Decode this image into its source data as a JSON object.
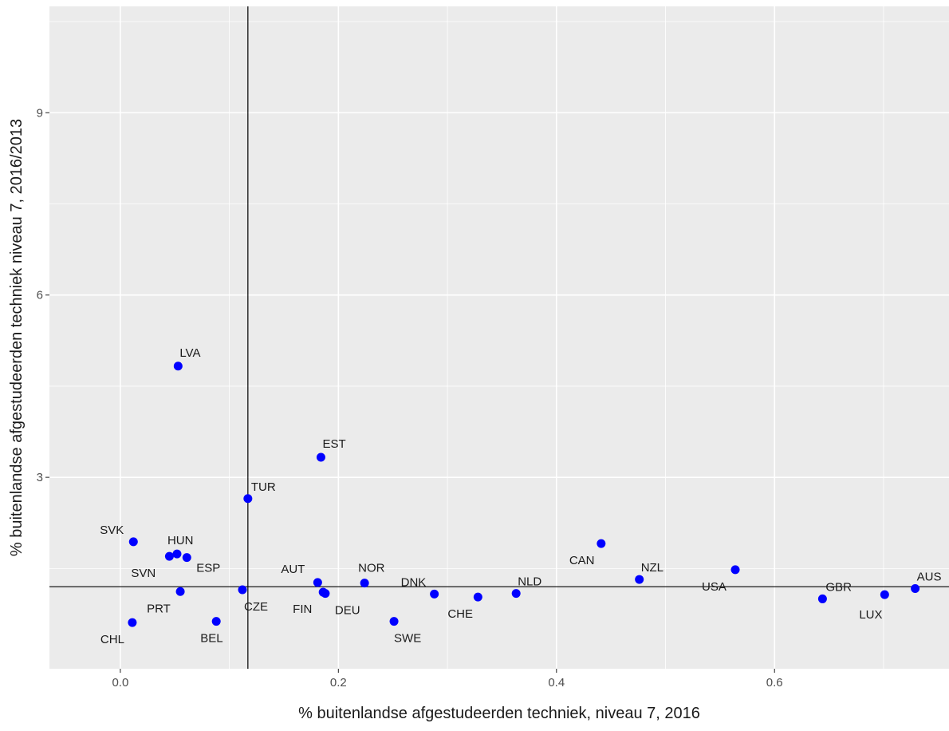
{
  "chart_data": {
    "type": "scatter",
    "xlabel": "% buitenlandse afgestudeerden techniek, niveau 7, 2016",
    "ylabel": "% buitenlandse afgestudeerden techniek niveau 7, 2016/2013",
    "xlim": [
      -0.065,
      0.76
    ],
    "ylim": [
      -0.15,
      10.75
    ],
    "x_ticks": [
      0.0,
      0.2,
      0.4,
      0.6
    ],
    "x_tick_labels": [
      "0.0",
      "0.2",
      "0.4",
      "0.6"
    ],
    "y_ticks": [
      3,
      6,
      9
    ],
    "y_tick_labels": [
      "3",
      "6",
      "9"
    ],
    "grid": true,
    "legend": "none",
    "point_color": "#0000ff",
    "reference_lines": {
      "vline_x": 0.117,
      "hline_y": 1.2
    },
    "points": [
      {
        "label": "LVA",
        "x": 0.053,
        "y": 4.83
      },
      {
        "label": "EST",
        "x": 0.184,
        "y": 3.33
      },
      {
        "label": "TUR",
        "x": 0.117,
        "y": 2.65
      },
      {
        "label": "SVK",
        "x": 0.012,
        "y": 1.94
      },
      {
        "label": "HUN",
        "x": 0.052,
        "y": 1.74
      },
      {
        "label": "SVN",
        "x": 0.045,
        "y": 1.7
      },
      {
        "label": "ESP",
        "x": 0.061,
        "y": 1.68
      },
      {
        "label": "PRT",
        "x": 0.055,
        "y": 1.12
      },
      {
        "label": "CHL",
        "x": 0.011,
        "y": 0.61
      },
      {
        "label": "BEL",
        "x": 0.088,
        "y": 0.63
      },
      {
        "label": "CZE",
        "x": 0.112,
        "y": 1.15
      },
      {
        "label": "AUT",
        "x": 0.181,
        "y": 1.27
      },
      {
        "label": "FIN",
        "x": 0.186,
        "y": 1.11
      },
      {
        "label": "DEU",
        "x": 0.188,
        "y": 1.09
      },
      {
        "label": "NOR",
        "x": 0.224,
        "y": 1.26
      },
      {
        "label": "SWE",
        "x": 0.251,
        "y": 0.63
      },
      {
        "label": "DNK",
        "x": 0.288,
        "y": 1.08
      },
      {
        "label": "CHE",
        "x": 0.328,
        "y": 1.03
      },
      {
        "label": "NLD",
        "x": 0.363,
        "y": 1.09
      },
      {
        "label": "CAN",
        "x": 0.441,
        "y": 1.91
      },
      {
        "label": "NZL",
        "x": 0.476,
        "y": 1.32
      },
      {
        "label": "USA",
        "x": 0.564,
        "y": 1.48
      },
      {
        "label": "GBR",
        "x": 0.644,
        "y": 1.0
      },
      {
        "label": "LUX",
        "x": 0.701,
        "y": 1.07
      },
      {
        "label": "AUS",
        "x": 0.729,
        "y": 1.17
      }
    ]
  }
}
